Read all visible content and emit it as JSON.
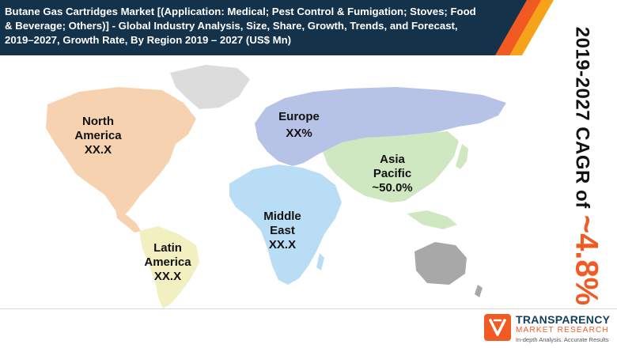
{
  "header": {
    "title": "Butane Gas Cartridges Market [(Application: Medical; Pest Control & Fumigation; Stoves; Food & Beverage; Others)] - Global Industry Analysis, Size, Share, Growth, Trends, and Forecast, 2019–2027, Growth Rate, By Region 2019 – 2027 (US$ Mn)"
  },
  "cagr": {
    "label": "2019-2027 CAGR of",
    "value": "~4.8%"
  },
  "regions": {
    "north_america": {
      "name_line1": "North",
      "name_line2": "America",
      "value": "XX.X"
    },
    "europe": {
      "name": "Europe",
      "value": "XX%"
    },
    "asia_pacific": {
      "name_line1": "Asia",
      "name_line2": "Pacific",
      "value": "~50.0%"
    },
    "middle_east": {
      "name_line1": "Middle",
      "name_line2": "East",
      "value": "XX.X"
    },
    "latin_america": {
      "name_line1": "Latin",
      "name_line2": "America",
      "value": "XX.X"
    }
  },
  "logo": {
    "name": "TRANSPARENCY",
    "sub": "MARKET RESEARCH",
    "tagline": "In-depth Analysis. Accurate Results"
  },
  "colors": {
    "header_navy": "#14324a",
    "accent_orange": "#f15a22",
    "accent_yellow": "#f7a21b",
    "north_america": "#f7d2b0",
    "latin_america": "#f2efc0",
    "europe": "#b7c3e6",
    "asia_pacific": "#cfe8c1",
    "africa_middle_east": "#b9ddf4",
    "oceania": "#a8a8a8",
    "greenland": "#dcdcdc"
  }
}
